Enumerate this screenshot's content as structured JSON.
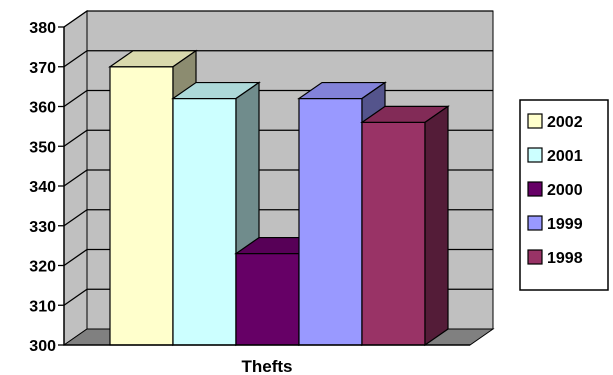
{
  "chart_data": {
    "type": "bar",
    "style": "3d-clustered",
    "categories": [
      "Thefts"
    ],
    "xlabel": "Thefts",
    "ylabel": "",
    "ylim": [
      300,
      380
    ],
    "y_ticks": [
      "300",
      "310",
      "320",
      "330",
      "340",
      "350",
      "360",
      "370",
      "380"
    ],
    "grid": true,
    "legend_position": "right",
    "series": [
      {
        "name": "2002",
        "values": [
          370
        ],
        "color": "#FFFFCC"
      },
      {
        "name": "2001",
        "values": [
          362
        ],
        "color": "#CCFFFF"
      },
      {
        "name": "2000",
        "values": [
          323
        ],
        "color": "#660066"
      },
      {
        "name": "1999",
        "values": [
          362
        ],
        "color": "#9999FF"
      },
      {
        "name": "1998",
        "values": [
          356
        ],
        "color": "#993366"
      }
    ],
    "bar_order": [
      "2002",
      "2001",
      "2000",
      "1999",
      "1998"
    ],
    "colors": {
      "wall": "#C0C0C0",
      "floor": "#808080",
      "gridline": "#000000"
    }
  }
}
